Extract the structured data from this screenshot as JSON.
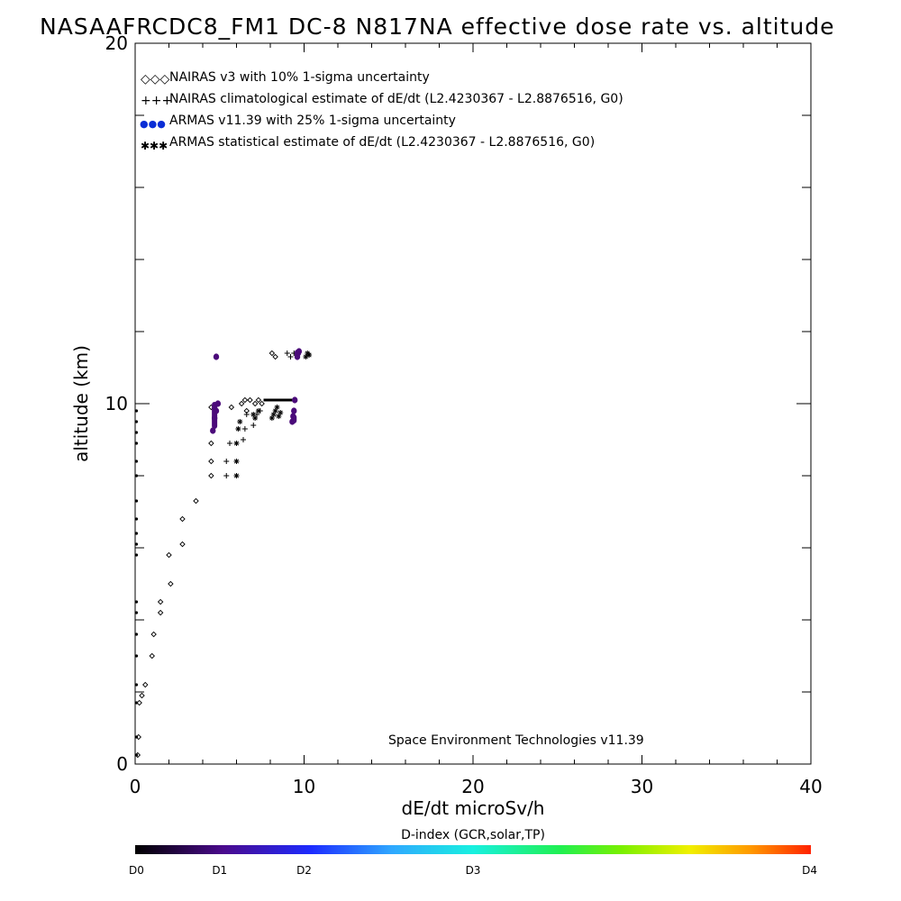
{
  "chart_data": {
    "type": "scatter",
    "title": "NASAAFRCDC8_FM1 DC-8   N817NA effective dose rate vs. altitude",
    "xlabel": "dE/dt microSv/h",
    "ylabel": "altitude (km)",
    "xlim": [
      0,
      40
    ],
    "ylim": [
      0,
      20
    ],
    "x_major_ticks": [
      0,
      10,
      20,
      30,
      40
    ],
    "x_tick_labels": [
      "0",
      "10",
      "20",
      "30",
      "40"
    ],
    "y_major_ticks": [
      0,
      10,
      20
    ],
    "y_tick_labels": [
      "0",
      "10",
      "20"
    ],
    "legend_position": "top-left",
    "credit": "Space Environment Technologies v11.39",
    "series": [
      {
        "name": "NAIRAS v3 with 10% 1-sigma uncertainty",
        "marker": "diamond",
        "legend_marker": "◇◇◇",
        "color": "#000000",
        "x": [
          0.15,
          0.2,
          0.25,
          0.4,
          0.6,
          1.0,
          1.1,
          1.5,
          1.5,
          2.1,
          2.0,
          2.8,
          2.8,
          3.6,
          4.5,
          4.5,
          4.5,
          4.5,
          5.7,
          6.3,
          6.5,
          6.6,
          6.8,
          7.1,
          7.3,
          7.5,
          8.1,
          8.3
        ],
        "y": [
          0.25,
          0.75,
          1.7,
          1.9,
          2.2,
          3.0,
          3.6,
          4.2,
          4.5,
          5.0,
          5.8,
          6.1,
          6.8,
          7.3,
          8.0,
          8.4,
          8.9,
          9.9,
          9.9,
          10.0,
          10.1,
          9.8,
          10.1,
          10.0,
          10.1,
          10.0,
          11.4,
          11.3
        ]
      },
      {
        "name": "NAIRAS climatological estimate of dE/dt (L2.4230367 - L2.8876516, G0)",
        "marker": "plus",
        "legend_marker": "+++",
        "color": "#000000",
        "x": [
          5.4,
          5.4,
          5.6,
          6.4,
          6.5,
          6.6,
          7.0,
          7.2,
          7.4,
          9.0,
          9.2,
          9.4
        ],
        "y": [
          8.0,
          8.4,
          8.9,
          9.0,
          9.3,
          9.7,
          9.4,
          9.7,
          9.8,
          11.4,
          11.3,
          11.4
        ],
        "band": {
          "y": 10.1,
          "x_from": 7.6,
          "x_to": 9.3
        }
      },
      {
        "name": "ARMAS v11.39 with 25% 1-sigma uncertainty",
        "marker": "filled-circle",
        "legend_marker": "●●●",
        "color": "#0a2ed6",
        "x": [
          4.6,
          4.7,
          4.8,
          4.9,
          4.8,
          9.3,
          9.35,
          9.4,
          9.45,
          9.6,
          9.65,
          9.7
        ],
        "y": [
          9.25,
          9.6,
          9.8,
          10.0,
          11.3,
          9.5,
          9.65,
          9.8,
          10.1,
          11.3,
          11.4,
          11.45
        ],
        "col_plot": "#4b0b7a"
      },
      {
        "name": "ARMAS statistical estimate of dE/dt (L2.4230367 - L2.8876516, G0)",
        "marker": "asterisk",
        "legend_marker": "✱✱✱",
        "color": "#000000",
        "x": [
          6.0,
          6.0,
          6.0,
          6.1,
          6.2,
          7.0,
          7.1,
          7.3,
          8.1,
          8.2,
          8.3,
          8.4,
          8.5,
          8.6,
          10.1,
          10.2,
          10.3
        ],
        "y": [
          8.0,
          8.4,
          8.9,
          9.3,
          9.5,
          9.7,
          9.6,
          9.8,
          9.6,
          9.7,
          9.8,
          9.9,
          9.65,
          9.75,
          11.3,
          11.4,
          11.35
        ]
      }
    ],
    "points_on_y_axis": [
      {
        "x": 0,
        "y": 0.25
      },
      {
        "x": 0,
        "y": 0.75
      },
      {
        "x": 0,
        "y": 1.7
      },
      {
        "x": 0,
        "y": 2.2
      },
      {
        "x": 0,
        "y": 3.0
      },
      {
        "x": 0,
        "y": 3.6
      },
      {
        "x": 0,
        "y": 4.2
      },
      {
        "x": 0,
        "y": 4.5
      },
      {
        "x": 0,
        "y": 5.8
      },
      {
        "x": 0,
        "y": 6.1
      },
      {
        "x": 0,
        "y": 6.4
      },
      {
        "x": 0,
        "y": 6.8
      },
      {
        "x": 0,
        "y": 7.3
      },
      {
        "x": 0,
        "y": 8.0
      },
      {
        "x": 0,
        "y": 8.4
      },
      {
        "x": 0,
        "y": 8.9
      },
      {
        "x": 0,
        "y": 9.2
      },
      {
        "x": 0,
        "y": 9.5
      },
      {
        "x": 0,
        "y": 9.8
      }
    ],
    "colorbar": {
      "label": "D-index (GCR,solar,TP)",
      "ticks": [
        {
          "label": "D0",
          "pos": 0.0
        },
        {
          "label": "D1",
          "pos": 0.125
        },
        {
          "label": "D2",
          "pos": 0.25
        },
        {
          "label": "D3",
          "pos": 0.5
        },
        {
          "label": "D4",
          "pos": 1.0
        }
      ],
      "stops": [
        {
          "pos": 0.0,
          "color": "#000000"
        },
        {
          "pos": 0.13,
          "color": "#4a0a8c"
        },
        {
          "pos": 0.26,
          "color": "#1d2bff"
        },
        {
          "pos": 0.38,
          "color": "#2fa8ff"
        },
        {
          "pos": 0.5,
          "color": "#18f0e0"
        },
        {
          "pos": 0.63,
          "color": "#20f050"
        },
        {
          "pos": 0.72,
          "color": "#7af000"
        },
        {
          "pos": 0.82,
          "color": "#f0f000"
        },
        {
          "pos": 0.91,
          "color": "#ff9a00"
        },
        {
          "pos": 1.0,
          "color": "#ff2200"
        }
      ]
    }
  }
}
